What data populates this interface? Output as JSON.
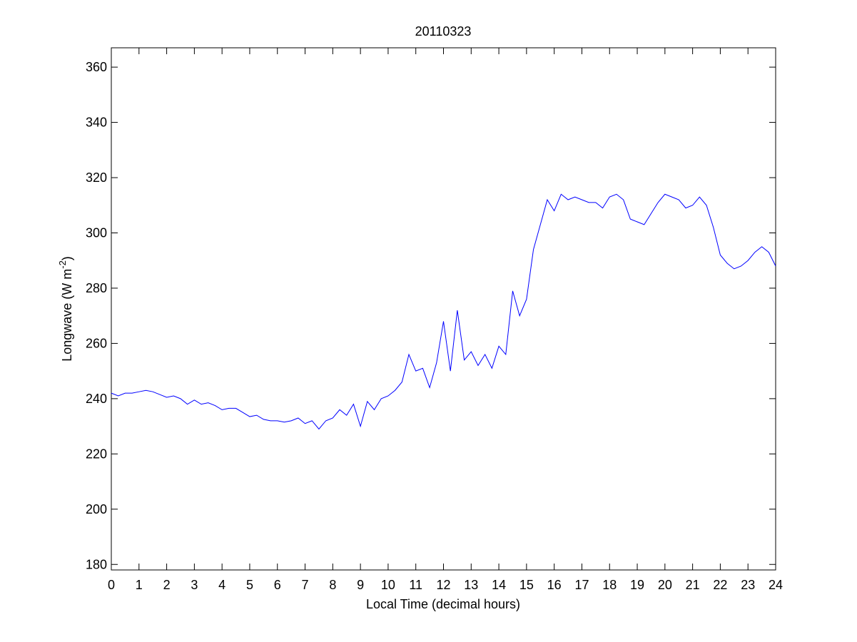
{
  "chart_data": {
    "type": "line",
    "title": "20110323",
    "xlabel": "Local Time (decimal hours)",
    "ylabel": [
      "Longwave (W m",
      "-2",
      ")"
    ],
    "x": [
      0,
      0.25,
      0.5,
      0.75,
      1,
      1.25,
      1.5,
      1.75,
      2,
      2.25,
      2.5,
      2.75,
      3,
      3.25,
      3.5,
      3.75,
      4,
      4.25,
      4.5,
      4.75,
      5,
      5.25,
      5.5,
      5.75,
      6,
      6.25,
      6.5,
      6.75,
      7,
      7.25,
      7.5,
      7.75,
      8,
      8.25,
      8.5,
      8.75,
      9,
      9.25,
      9.5,
      9.75,
      10,
      10.25,
      10.5,
      10.75,
      11,
      11.25,
      11.5,
      11.75,
      12,
      12.25,
      12.5,
      12.75,
      13,
      13.25,
      13.5,
      13.75,
      14,
      14.25,
      14.5,
      14.75,
      15,
      15.25,
      15.5,
      15.75,
      16,
      16.25,
      16.5,
      16.75,
      17,
      17.25,
      17.5,
      17.75,
      18,
      18.25,
      18.5,
      18.75,
      19,
      19.25,
      19.5,
      19.75,
      20,
      20.25,
      20.5,
      20.75,
      21,
      21.25,
      21.5,
      21.75,
      22,
      22.25,
      22.5,
      22.75,
      23,
      23.25,
      23.5,
      23.75,
      24
    ],
    "series": [
      {
        "color": "#0000ff",
        "values": [
          242,
          241,
          242,
          242,
          242.5,
          243,
          242.5,
          241.5,
          240.5,
          241,
          240,
          238,
          239.5,
          238,
          238.5,
          237.5,
          236,
          236.5,
          236.5,
          235,
          233.5,
          234,
          232.5,
          232,
          232,
          231.5,
          232,
          233,
          231,
          232,
          229,
          232,
          233,
          236,
          234,
          238,
          230,
          239,
          236,
          240,
          241,
          243,
          246,
          256,
          250,
          251,
          244,
          253,
          268,
          250,
          272,
          254,
          257,
          252,
          256,
          251,
          259,
          256,
          279,
          270,
          276,
          294,
          303,
          312,
          308,
          314,
          312,
          313,
          312,
          311,
          311,
          309,
          313,
          314,
          312,
          305,
          304,
          303,
          307,
          311,
          314,
          313,
          312,
          309,
          310,
          313,
          310,
          302,
          292,
          289,
          287,
          288,
          290,
          293,
          295,
          293,
          288
        ]
      }
    ],
    "xlim": [
      0,
      24
    ],
    "ylim": [
      178,
      367
    ],
    "xticks": [
      0,
      1,
      2,
      3,
      4,
      5,
      6,
      7,
      8,
      9,
      10,
      11,
      12,
      13,
      14,
      15,
      16,
      17,
      18,
      19,
      20,
      21,
      22,
      23,
      24
    ],
    "yticks": [
      180,
      200,
      220,
      240,
      260,
      280,
      300,
      320,
      340,
      360
    ]
  }
}
